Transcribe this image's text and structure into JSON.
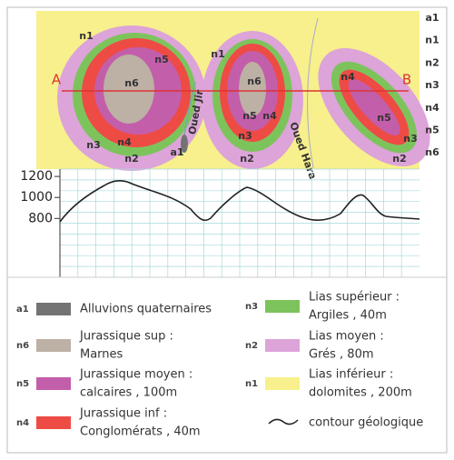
{
  "map": {
    "labels": [
      "n1",
      "n5",
      "n6",
      "n4",
      "n3",
      "n2",
      "n1",
      "n6",
      "n5",
      "n4",
      "n3",
      "n2",
      "a1",
      "n4",
      "n5",
      "n3",
      "n2"
    ],
    "section_start": "A",
    "section_end": "B",
    "rivers": [
      "Oued Jir",
      "Oued Hara"
    ]
  },
  "strata_column": [
    "a1",
    "n1",
    "n2",
    "n3",
    "n4",
    "n5",
    "n6"
  ],
  "profile": {
    "ylim": [
      240,
      1270
    ],
    "yticks": [
      1200,
      1000,
      800
    ]
  },
  "legend": [
    {
      "code": "a1",
      "color": "#737373",
      "lines": [
        "Alluvions quaternaires"
      ]
    },
    {
      "code": "n6",
      "color": "#bdb0a4",
      "lines": [
        "Jurassique sup :",
        "Marnes"
      ]
    },
    {
      "code": "n5",
      "color": "#c35eab",
      "lines": [
        "Jurassique moyen :",
        "calcaires , 100m"
      ]
    },
    {
      "code": "n4",
      "color": "#ee4b45",
      "lines": [
        "Jurassique inf :",
        "Conglomérats , 40m"
      ]
    },
    {
      "code": "n3",
      "color": "#7dc35c",
      "lines": [
        "Lias supérieur :",
        "Argiles , 40m"
      ]
    },
    {
      "code": "n2",
      "color": "#dca4d8",
      "lines": [
        "Lias moyen :",
        "Grés , 80m"
      ]
    },
    {
      "code": "n1",
      "color": "#f7f08c",
      "lines": [
        "Lias inférieur :",
        "dolomites , 200m"
      ]
    },
    {
      "lines": [
        "contour géologique"
      ]
    }
  ]
}
